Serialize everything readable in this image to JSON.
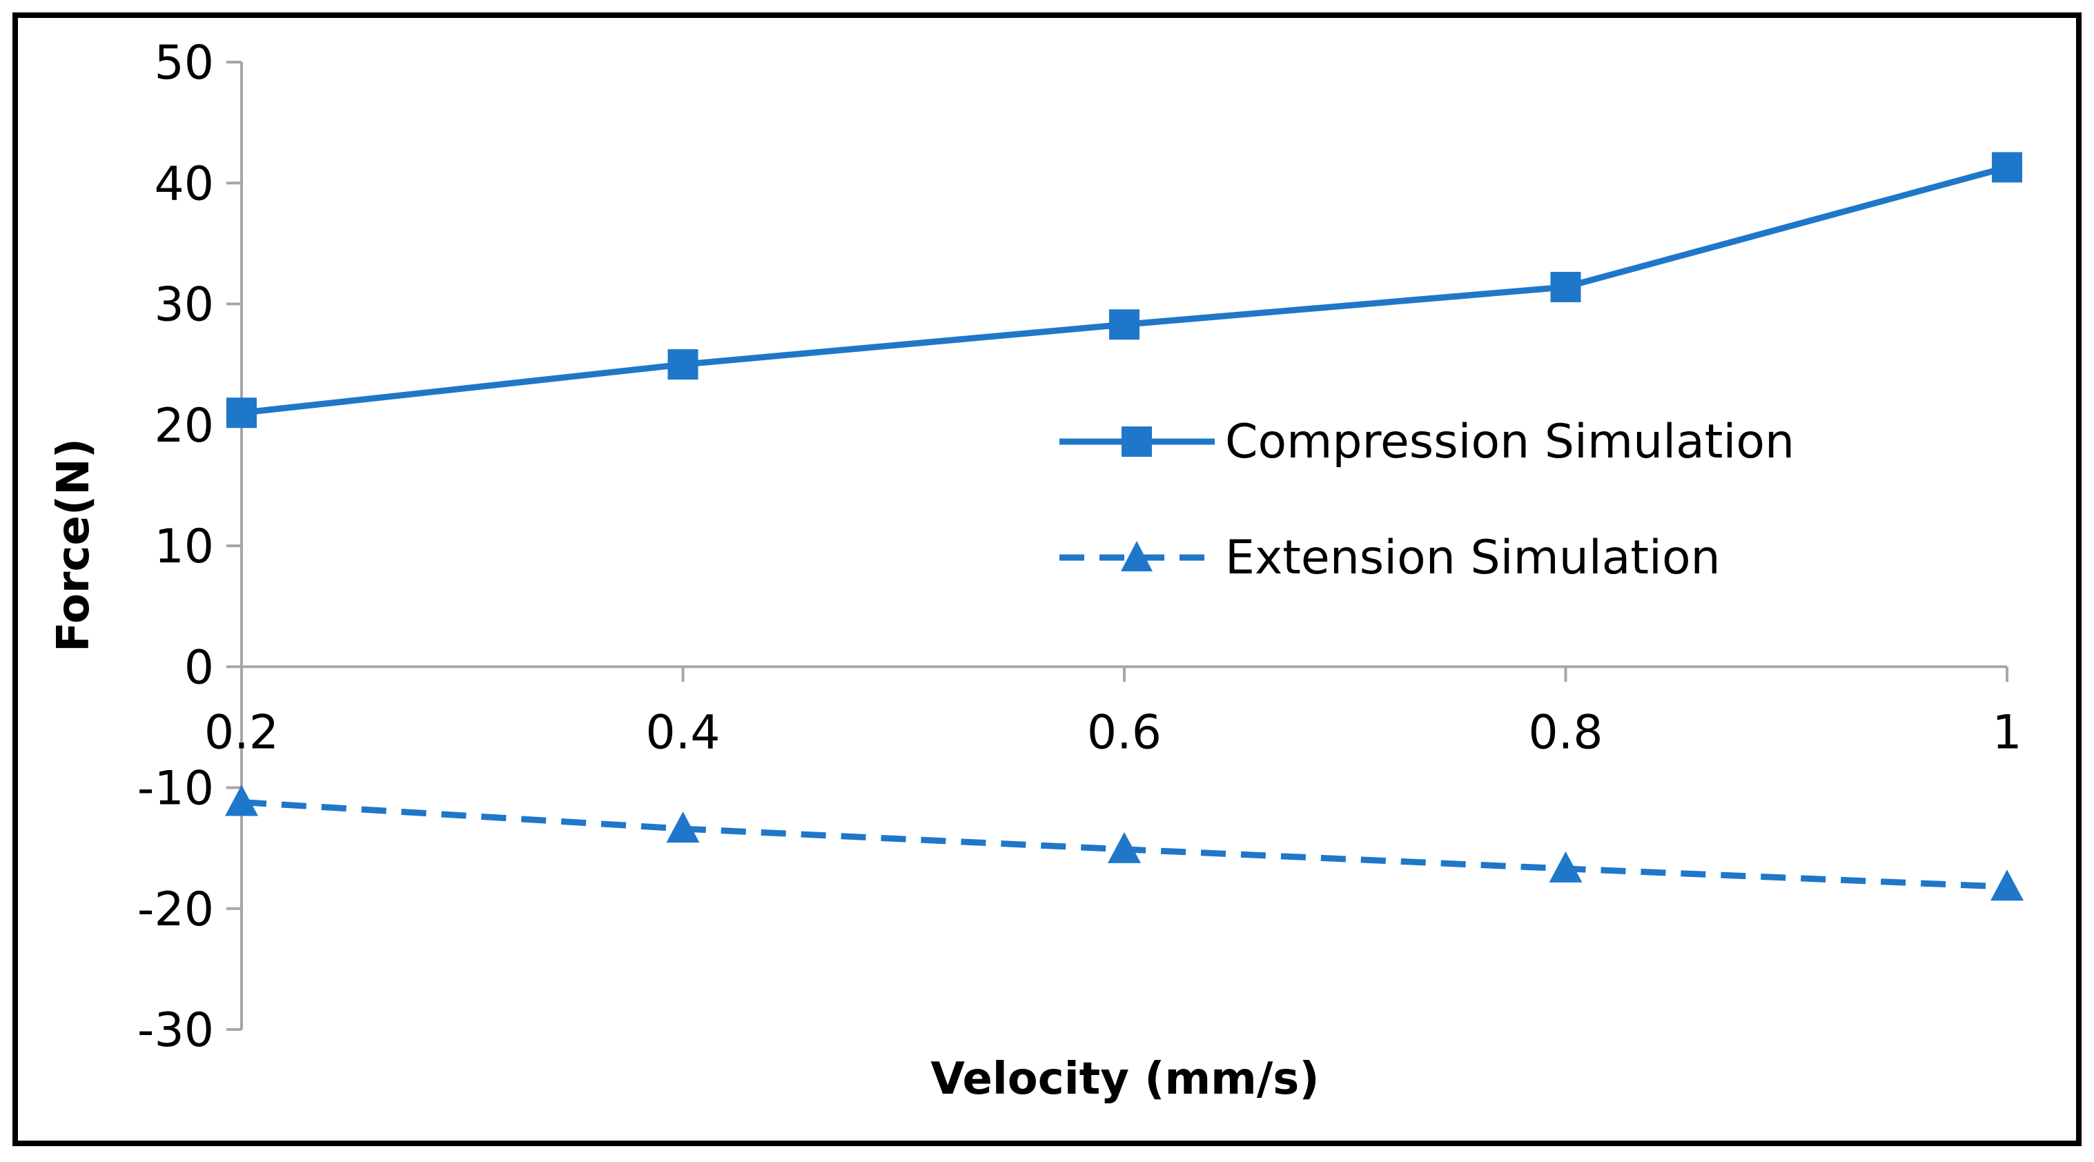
{
  "chart_data": {
    "type": "line",
    "title": "",
    "xlabel": "Velocity (mm/s)",
    "ylabel": "Force(N)",
    "x": [
      0.2,
      0.4,
      0.6,
      0.8,
      1
    ],
    "x_tick_labels": [
      "0.2",
      "0.4",
      "0.6",
      "0.8",
      "1"
    ],
    "xlim": [
      0.2,
      1
    ],
    "ylim": [
      -30,
      50
    ],
    "y_ticks": [
      50,
      40,
      30,
      20,
      10,
      0,
      -10,
      -20,
      -30
    ],
    "grid": false,
    "legend_position": "center-right",
    "series": [
      {
        "name": "Compression Simulation",
        "values": [
          21,
          25,
          28.3,
          31.4,
          41.3
        ],
        "marker": "square",
        "line_style": "solid",
        "color": "#1f77c9"
      },
      {
        "name": "Extension Simulation",
        "values": [
          -11.2,
          -13.4,
          -15.1,
          -16.7,
          -18.2
        ],
        "marker": "triangle",
        "line_style": "dashed",
        "color": "#1f77c9"
      }
    ]
  }
}
